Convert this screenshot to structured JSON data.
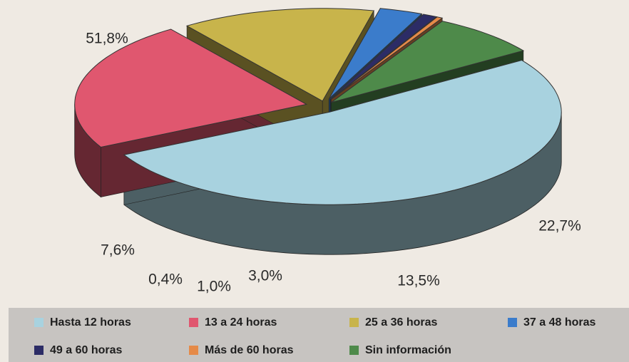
{
  "chart_data": {
    "type": "pie",
    "categories": [
      "Hasta 12 horas",
      "13 a 24 horas",
      "25 a 36 horas",
      "37 a 48 horas",
      "49 a 60 horas",
      "Más de 60 horas",
      "Sin información"
    ],
    "values": [
      51.8,
      22.7,
      13.5,
      3.0,
      1.0,
      0.4,
      7.6
    ],
    "value_labels": [
      "51,8%",
      "22,7%",
      "13,5%",
      "3,0%",
      "1,0%",
      "0,4%",
      "7,6%"
    ],
    "colors": [
      "#a8d2df",
      "#e0576f",
      "#c8b44b",
      "#3b7ccb",
      "#2c2c66",
      "#e58a48",
      "#4e8a4a"
    ]
  }
}
